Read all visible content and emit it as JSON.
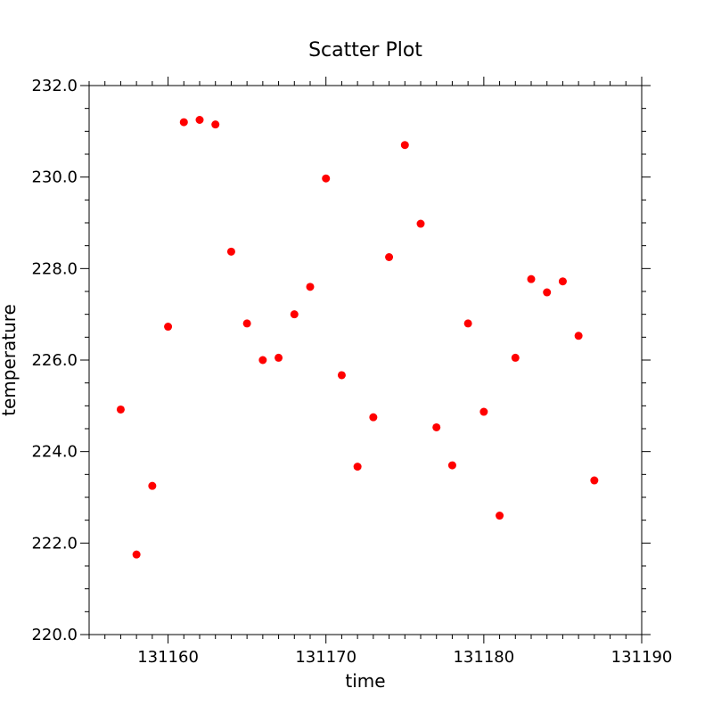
{
  "chart_data": {
    "type": "scatter",
    "title": "Scatter Plot",
    "xlabel": "time",
    "ylabel": "temperature",
    "xlim": [
      131155,
      131190
    ],
    "ylim": [
      220.0,
      232.0
    ],
    "x_major_ticks": [
      131160,
      131170,
      131180,
      131190
    ],
    "x_tick_labels": [
      "131160",
      "131170",
      "131180",
      "131190"
    ],
    "x_minor_step": 1,
    "y_major_ticks": [
      220.0,
      222.0,
      224.0,
      226.0,
      228.0,
      230.0,
      232.0
    ],
    "y_tick_labels": [
      "220.0",
      "222.0",
      "224.0",
      "226.0",
      "228.0",
      "230.0",
      "232.0"
    ],
    "y_minor_step": 0.5,
    "grid": false,
    "marker_color": "#ff0000",
    "series": [
      {
        "x": [
          131157,
          131158,
          131159,
          131160,
          131161,
          131162,
          131163,
          131164,
          131165,
          131166,
          131167,
          131168,
          131169,
          131170,
          131171,
          131172,
          131173,
          131174,
          131175,
          131176,
          131177,
          131178,
          131179,
          131180,
          131181,
          131182,
          131183,
          131184,
          131185,
          131186,
          131187
        ],
        "y": [
          224.92,
          221.75,
          223.25,
          226.73,
          231.2,
          231.25,
          231.15,
          228.37,
          226.8,
          226.0,
          226.05,
          227.0,
          227.6,
          229.97,
          225.67,
          223.67,
          224.75,
          228.25,
          230.7,
          228.98,
          224.53,
          223.7,
          226.8,
          224.87,
          222.6,
          226.05,
          227.77,
          227.48,
          227.72,
          226.53,
          223.37
        ]
      }
    ]
  }
}
